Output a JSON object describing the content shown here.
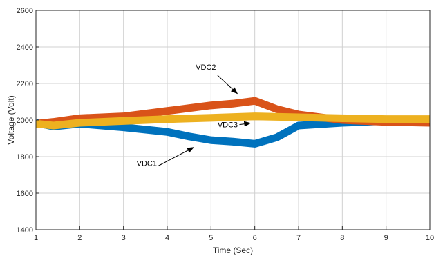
{
  "chart_data": {
    "type": "line",
    "title": "",
    "xlabel": "Time (Sec)",
    "ylabel": "Voltage (Volt)",
    "xlim": [
      1,
      10
    ],
    "ylim": [
      1400,
      2600
    ],
    "xticks": [
      1,
      2,
      3,
      4,
      5,
      6,
      7,
      8,
      9,
      10
    ],
    "yticks": [
      1400,
      1600,
      1800,
      2000,
      2200,
      2400,
      2600
    ],
    "grid": true,
    "legend": "none",
    "series": [
      {
        "name": "VDC1",
        "color": "#0072BD",
        "band_width": 42,
        "x": [
          1,
          1.4,
          2,
          3,
          4,
          4.5,
          5,
          5.5,
          6,
          6.5,
          7,
          8,
          9,
          10
        ],
        "y": [
          1985,
          1965,
          1980,
          1960,
          1935,
          1910,
          1890,
          1882,
          1870,
          1905,
          1970,
          1985,
          1995,
          1995
        ]
      },
      {
        "name": "VDC2",
        "color": "#D95319",
        "band_width": 42,
        "x": [
          1,
          1.4,
          2,
          3,
          4,
          4.5,
          5,
          5.5,
          6,
          6.5,
          7,
          8,
          9,
          10
        ],
        "y": [
          1980,
          1990,
          2010,
          2020,
          2050,
          2065,
          2080,
          2090,
          2105,
          2060,
          2030,
          2000,
          1990,
          1985
        ]
      },
      {
        "name": "VDC3",
        "color": "#EDB120",
        "band_width": 42,
        "x": [
          1,
          1.4,
          2,
          3,
          4,
          5,
          6,
          7,
          8,
          9,
          10
        ],
        "y": [
          1980,
          1970,
          1985,
          1995,
          2005,
          2012,
          2020,
          2015,
          2010,
          2005,
          2005
        ]
      }
    ],
    "annotations": [
      {
        "text": "VDC2",
        "label_at": [
          4.65,
          2275
        ],
        "arrow_from": [
          5.15,
          2245
        ],
        "arrow_to": [
          5.6,
          2145
        ]
      },
      {
        "text": "VDC3",
        "label_at": [
          5.15,
          1960
        ],
        "arrow_from": [
          5.65,
          1975
        ],
        "arrow_to": [
          5.9,
          1983
        ]
      },
      {
        "text": "VDC1",
        "label_at": [
          3.3,
          1750
        ],
        "arrow_from": [
          3.8,
          1750
        ],
        "arrow_to": [
          4.6,
          1850
        ]
      }
    ]
  }
}
